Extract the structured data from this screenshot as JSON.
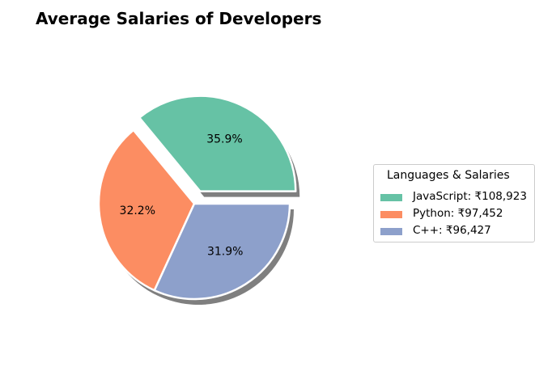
{
  "chart_data": {
    "type": "pie",
    "title": "Average Salaries of Developers",
    "legend_title": "Languages & Salaries",
    "legend_position": "right",
    "slices": [
      {
        "label": "JavaScript: ₹108,923",
        "language": "JavaScript",
        "value": 108923,
        "percent_label": "35.9%",
        "color": "#66c2a5",
        "exploded": true
      },
      {
        "label": "Python: ₹97,452",
        "language": "Python",
        "value": 97452,
        "percent_label": "32.2%",
        "color": "#fc8d62",
        "exploded": false
      },
      {
        "label": "C++: ₹96,427",
        "language": "C++",
        "value": 96427,
        "percent_label": "31.9%",
        "color": "#8da0cb",
        "exploded": false
      }
    ],
    "start_angle": 0,
    "shadow": true
  }
}
